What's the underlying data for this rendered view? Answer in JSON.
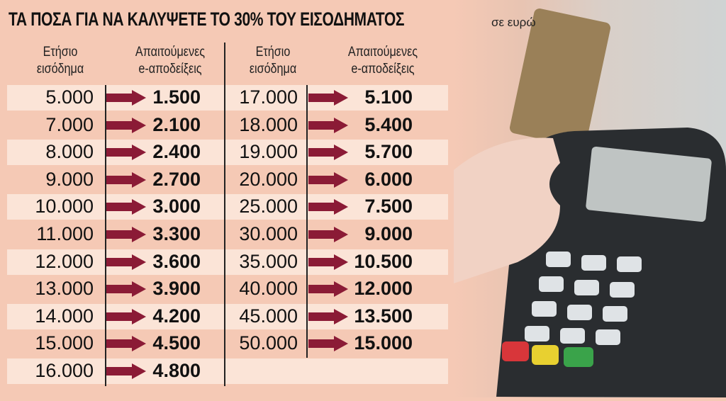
{
  "title": "ΤΑ ΠΟΣΑ ΓΙΑ ΝΑ ΚΑΛΥΨΕΤΕ ΤΟ 30% ΤΟΥ ΕΙΣΟΔΗΜΑΤΟΣ",
  "subtitle": "σε ευρώ",
  "headers": {
    "income": [
      "Ετήσιο",
      "εισόδημα"
    ],
    "receipts": [
      "Απαιτούμενες",
      "e-αποδείξεις"
    ]
  },
  "colors": {
    "arrow": "#8b1b36",
    "background": "#f5c9b5",
    "band": "#fbe4d7"
  },
  "left": [
    [
      "5.000",
      "1.500"
    ],
    [
      "7.000",
      "2.100"
    ],
    [
      "8.000",
      "2.400"
    ],
    [
      "9.000",
      "2.700"
    ],
    [
      "10.000",
      "3.000"
    ],
    [
      "11.000",
      "3.300"
    ],
    [
      "12.000",
      "3.600"
    ],
    [
      "13.000",
      "3.900"
    ],
    [
      "14.000",
      "4.200"
    ],
    [
      "15.000",
      "4.500"
    ],
    [
      "16.000",
      "4.800"
    ]
  ],
  "right": [
    [
      "17.000",
      "5.100"
    ],
    [
      "18.000",
      "5.400"
    ],
    [
      "19.000",
      "5.700"
    ],
    [
      "20.000",
      "6.000"
    ],
    [
      "25.000",
      "7.500"
    ],
    [
      "30.000",
      "9.000"
    ],
    [
      "35.000",
      "10.500"
    ],
    [
      "40.000",
      "12.000"
    ],
    [
      "45.000",
      "13.500"
    ],
    [
      "50.000",
      "15.000"
    ]
  ]
}
